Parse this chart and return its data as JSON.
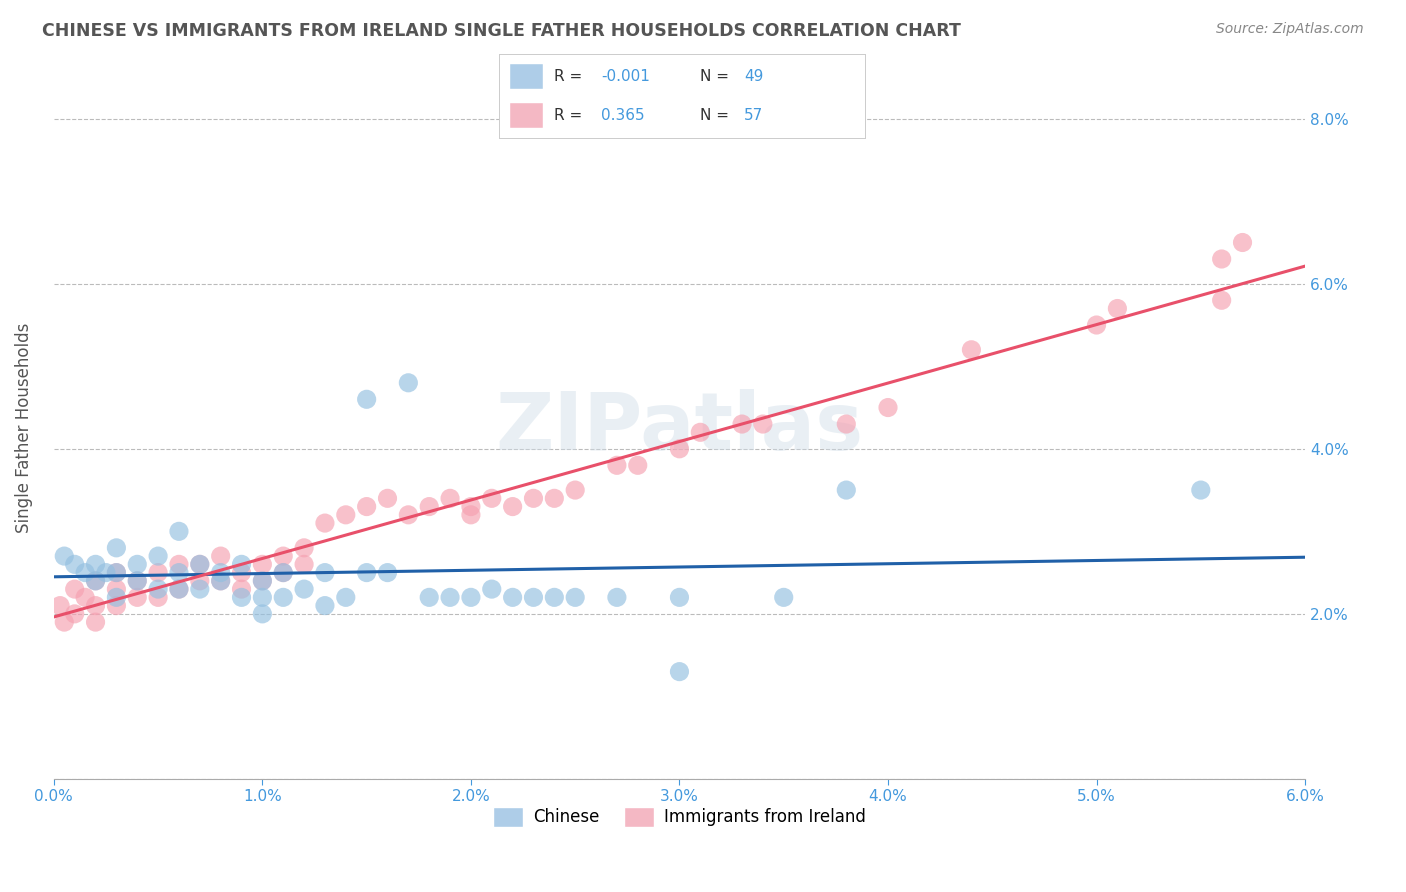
{
  "title": "CHINESE VS IMMIGRANTS FROM IRELAND SINGLE FATHER HOUSEHOLDS CORRELATION CHART",
  "source": "Source: ZipAtlas.com",
  "ylabel": "Single Father Households",
  "xlim": [
    0.0,
    0.06
  ],
  "ylim": [
    0.0,
    0.085
  ],
  "xticks": [
    0.0,
    0.01,
    0.02,
    0.03,
    0.04,
    0.05,
    0.06
  ],
  "yticks": [
    0.0,
    0.02,
    0.04,
    0.06,
    0.08
  ],
  "yticklabels_right": [
    "",
    "2.0%",
    "4.0%",
    "6.0%",
    "8.0%"
  ],
  "watermark_text": "ZIPatlas",
  "chinese_color": "#92bfe0",
  "ireland_color": "#f5a0b0",
  "chinese_line_color": "#2060a8",
  "ireland_line_color": "#e8506a",
  "chinese_legend_color": "#aecde8",
  "ireland_legend_color": "#f4b8c4",
  "R_chinese": -0.001,
  "R_ireland": 0.365,
  "N_chinese": 49,
  "N_ireland": 57,
  "grid_color": "#bbbbbb",
  "bg_color": "#ffffff",
  "title_color": "#555555",
  "axis_color": "#888888",
  "tick_color": "#4499dd",
  "chinese_x": [
    0.0005,
    0.001,
    0.0015,
    0.002,
    0.002,
    0.0025,
    0.003,
    0.003,
    0.003,
    0.004,
    0.004,
    0.005,
    0.005,
    0.006,
    0.006,
    0.006,
    0.007,
    0.007,
    0.008,
    0.008,
    0.009,
    0.009,
    0.01,
    0.01,
    0.01,
    0.011,
    0.011,
    0.012,
    0.013,
    0.013,
    0.014,
    0.015,
    0.015,
    0.016,
    0.017,
    0.018,
    0.019,
    0.02,
    0.021,
    0.022,
    0.023,
    0.024,
    0.025,
    0.027,
    0.03,
    0.03,
    0.035,
    0.038,
    0.055
  ],
  "chinese_y": [
    0.027,
    0.026,
    0.025,
    0.026,
    0.024,
    0.025,
    0.028,
    0.025,
    0.022,
    0.026,
    0.024,
    0.027,
    0.023,
    0.03,
    0.025,
    0.023,
    0.026,
    0.023,
    0.025,
    0.024,
    0.026,
    0.022,
    0.024,
    0.022,
    0.02,
    0.025,
    0.022,
    0.023,
    0.025,
    0.021,
    0.022,
    0.046,
    0.025,
    0.025,
    0.048,
    0.022,
    0.022,
    0.022,
    0.023,
    0.022,
    0.022,
    0.022,
    0.022,
    0.022,
    0.022,
    0.013,
    0.022,
    0.035,
    0.035
  ],
  "ireland_x": [
    0.0003,
    0.0005,
    0.001,
    0.001,
    0.0015,
    0.002,
    0.002,
    0.002,
    0.003,
    0.003,
    0.003,
    0.004,
    0.004,
    0.005,
    0.005,
    0.006,
    0.006,
    0.007,
    0.007,
    0.008,
    0.008,
    0.009,
    0.009,
    0.01,
    0.01,
    0.011,
    0.011,
    0.012,
    0.012,
    0.013,
    0.014,
    0.015,
    0.016,
    0.017,
    0.018,
    0.019,
    0.02,
    0.02,
    0.021,
    0.022,
    0.023,
    0.024,
    0.025,
    0.027,
    0.028,
    0.03,
    0.031,
    0.033,
    0.034,
    0.038,
    0.04,
    0.044,
    0.05,
    0.051,
    0.056,
    0.056,
    0.057
  ],
  "ireland_y": [
    0.021,
    0.019,
    0.023,
    0.02,
    0.022,
    0.024,
    0.021,
    0.019,
    0.025,
    0.023,
    0.021,
    0.024,
    0.022,
    0.025,
    0.022,
    0.026,
    0.023,
    0.026,
    0.024,
    0.027,
    0.024,
    0.025,
    0.023,
    0.026,
    0.024,
    0.027,
    0.025,
    0.028,
    0.026,
    0.031,
    0.032,
    0.033,
    0.034,
    0.032,
    0.033,
    0.034,
    0.032,
    0.033,
    0.034,
    0.033,
    0.034,
    0.034,
    0.035,
    0.038,
    0.038,
    0.04,
    0.042,
    0.043,
    0.043,
    0.043,
    0.045,
    0.052,
    0.055,
    0.057,
    0.063,
    0.058,
    0.065
  ]
}
